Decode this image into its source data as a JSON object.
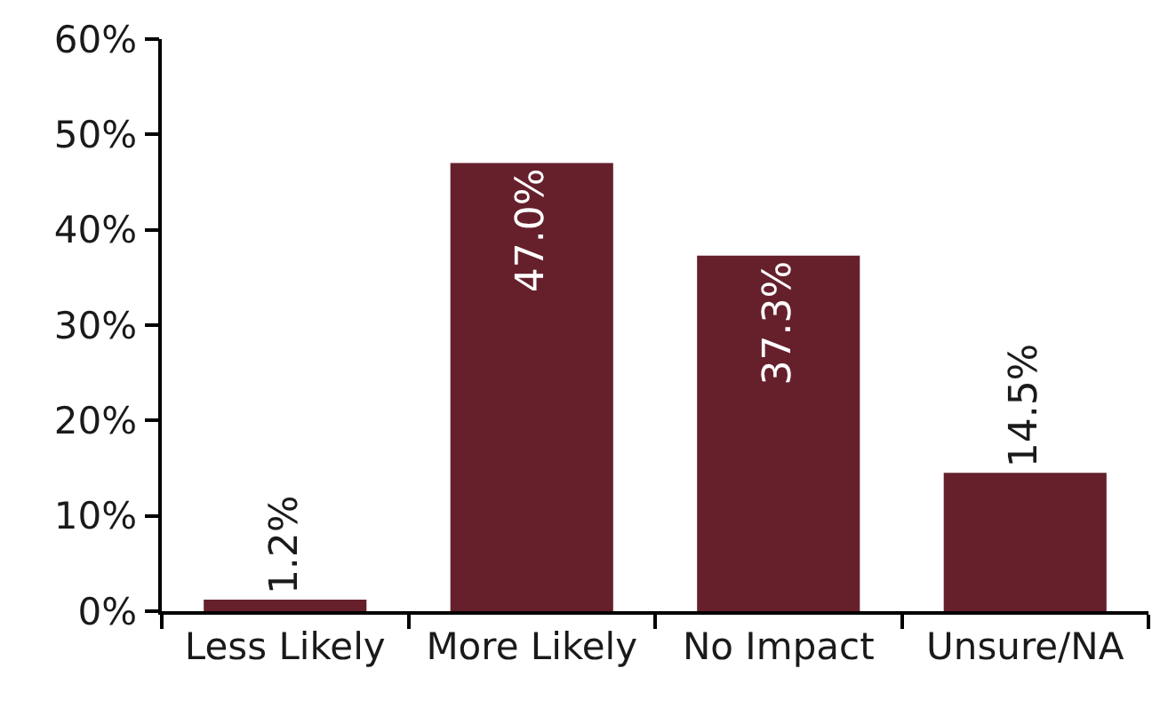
{
  "chart_data": {
    "type": "bar",
    "categories": [
      "Less Likely",
      "More Likely",
      "No Impact",
      "Unsure/NA"
    ],
    "values": [
      1.2,
      47.0,
      37.3,
      14.5
    ],
    "value_labels": [
      "1.2%",
      "47.0%",
      "37.3%",
      "14.5%"
    ],
    "color": "#65202c",
    "ylim": [
      0,
      60
    ],
    "yticks": [
      {
        "value": 0,
        "label": "0%"
      },
      {
        "value": 10,
        "label": "10%"
      },
      {
        "value": 20,
        "label": "20%"
      },
      {
        "value": 30,
        "label": "30%"
      },
      {
        "value": 40,
        "label": "40%"
      },
      {
        "value": 50,
        "label": "50%"
      },
      {
        "value": 60,
        "label": "60%"
      }
    ]
  }
}
